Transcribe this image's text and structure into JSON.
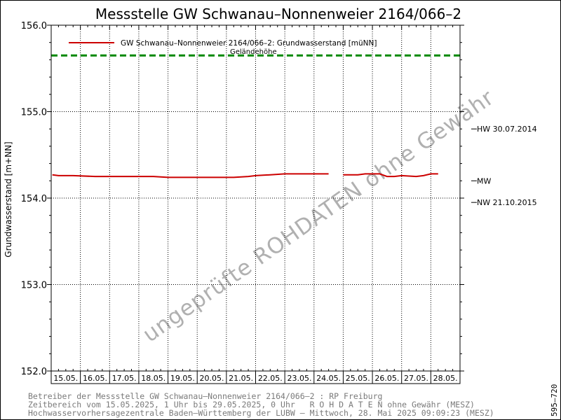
{
  "chart_data": {
    "type": "line",
    "title": "Messstelle GW Schwanau–Nonnenweier 2164/066–2",
    "ylabel": "Grundwasserstand [m+NN]",
    "xlabel": "",
    "ylim": [
      152.0,
      156.0
    ],
    "y_ticks": [
      "152.0",
      "153.0",
      "154.0",
      "155.0",
      "156.0"
    ],
    "x_tick_labels": [
      "15.05.",
      "16.05.",
      "17.05.",
      "18.05.",
      "19.05.",
      "20.05.",
      "21.05.",
      "22.05.",
      "23.05.",
      "24.05.",
      "25.05.",
      "26.05.",
      "27.05.",
      "28.05."
    ],
    "grid": true,
    "legend_position": "top-left",
    "series": [
      {
        "name": "GW Schwanau–Nonnenweier 2164/066–2: Grundwasserstand  [müNN]",
        "color": "#cc0000",
        "segments": [
          [
            [
              "15.05.2025 01:00",
              154.27
            ],
            [
              "15.05.2025 06:00",
              154.26
            ],
            [
              "15.05.2025 18:00",
              154.26
            ],
            [
              "16.05.2025 12:00",
              154.25
            ],
            [
              "17.05.2025 12:00",
              154.25
            ],
            [
              "18.05.2025 12:00",
              154.25
            ],
            [
              "19.05.2025 00:00",
              154.24
            ],
            [
              "19.05.2025 12:00",
              154.24
            ],
            [
              "20.05.2025 12:00",
              154.24
            ],
            [
              "21.05.2025 06:00",
              154.24
            ],
            [
              "21.05.2025 18:00",
              154.25
            ],
            [
              "22.05.2025 00:00",
              154.26
            ],
            [
              "22.05.2025 12:00",
              154.27
            ],
            [
              "23.05.2025 00:00",
              154.28
            ],
            [
              "23.05.2025 12:00",
              154.28
            ],
            [
              "24.05.2025 00:00",
              154.28
            ],
            [
              "24.05.2025 12:00",
              154.28
            ]
          ],
          [
            [
              "25.05.2025 00:00",
              154.27
            ],
            [
              "25.05.2025 12:00",
              154.27
            ],
            [
              "25.05.2025 18:00",
              154.28
            ],
            [
              "26.05.2025 06:00",
              154.28
            ],
            [
              "26.05.2025 12:00",
              154.25
            ],
            [
              "26.05.2025 18:00",
              154.25
            ],
            [
              "27.05.2025 00:00",
              154.26
            ],
            [
              "27.05.2025 12:00",
              154.25
            ],
            [
              "27.05.2025 18:00",
              154.26
            ],
            [
              "28.05.2025 00:00",
              154.28
            ],
            [
              "28.05.2025 06:00",
              154.28
            ]
          ]
        ]
      }
    ],
    "reference_lines": [
      {
        "name": "Geländehöhe",
        "value": 155.65,
        "color": "#008800",
        "style": "dashed"
      }
    ],
    "annotations": [
      {
        "label": "HW 30.07.2014",
        "value": 154.8
      },
      {
        "label": "MW",
        "value": 154.2
      },
      {
        "label": "NW 21.10.2015",
        "value": 153.95
      }
    ],
    "watermark": "ungeprüfte ROHDATEN ohne Gewähr"
  },
  "footer": {
    "line1": "Betreiber der Messstelle GW Schwanau–Nonnenweier 2164/066–2 : RP Freiburg",
    "line2": "Zeitbereich vom 15.05.2025, 1 Uhr bis 29.05.2025, 0 Uhr   R O H D A T E N ohne Gewähr (MESZ)",
    "line3": "Hochwasservorhersagezentrale Baden–Württemberg der LUBW – Mittwoch, 28. Mai 2025 09:09:23 (MESZ)"
  },
  "code": "595–720"
}
